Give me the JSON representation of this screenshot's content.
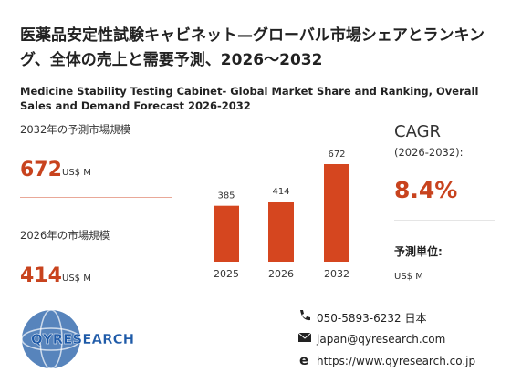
{
  "header": {
    "title_ja": "医薬品安定性試験キャビネット—グローバル市場シェアとランキング、全体の売上と需要予測、2026～2032",
    "title_en": "Medicine Stability Testing Cabinet- Global Market Share and Ranking, Overall Sales and Demand Forecast 2026-2032"
  },
  "stats": [
    {
      "label": "2032年の予測市場規模",
      "value": 672,
      "unit": "US$ M"
    },
    {
      "label": "2026年の市場規模",
      "value": 414,
      "unit": "US$ M"
    }
  ],
  "cagr": {
    "label": "CAGR",
    "period": "(2026-2032):",
    "value": 8.4,
    "value_label": "8.4%"
  },
  "forecast_unit": {
    "label": "予測単位:",
    "value": "US$ M"
  },
  "chart_data": {
    "type": "bar",
    "categories": [
      "2025",
      "2026",
      "2032"
    ],
    "values": [
      385,
      414,
      672
    ],
    "color": "#d5461f"
  },
  "contact": {
    "phone": "050-5893-6232 日本",
    "email": "japan@qyresearch.com",
    "web": "https://www.qyresearch.co.jp"
  },
  "logo": "QYRESEARCH"
}
